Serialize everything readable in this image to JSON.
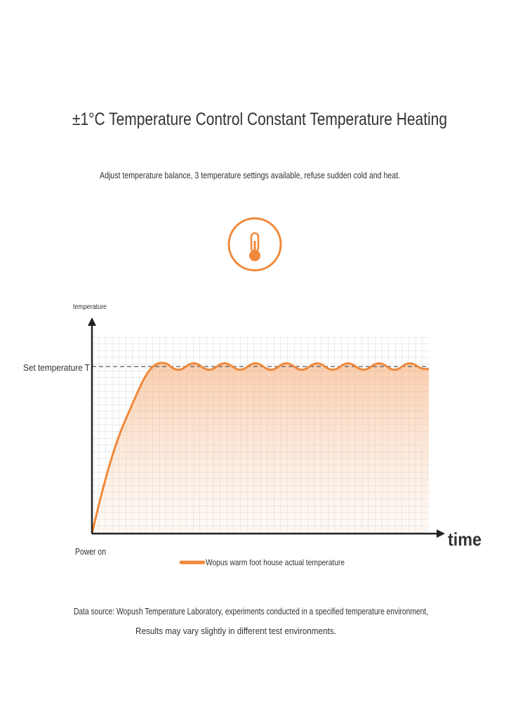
{
  "header": {
    "title": "±1°C Temperature Control Constant Temperature Heating",
    "subtitle": "Adjust temperature balance, 3 temperature settings available, refuse sudden cold and heat."
  },
  "diagram": {
    "y_label": "temperature",
    "set_label": "Set temperature T",
    "origin_label": "Power on",
    "x_label": "time",
    "legend": "Wopus warm foot house actual temperature"
  },
  "footer": {
    "line1": "Data source: Wopush Temperature Laboratory, experiments conducted in a specified temperature environment,",
    "line2": "Results may vary slightly in different test environments."
  }
}
